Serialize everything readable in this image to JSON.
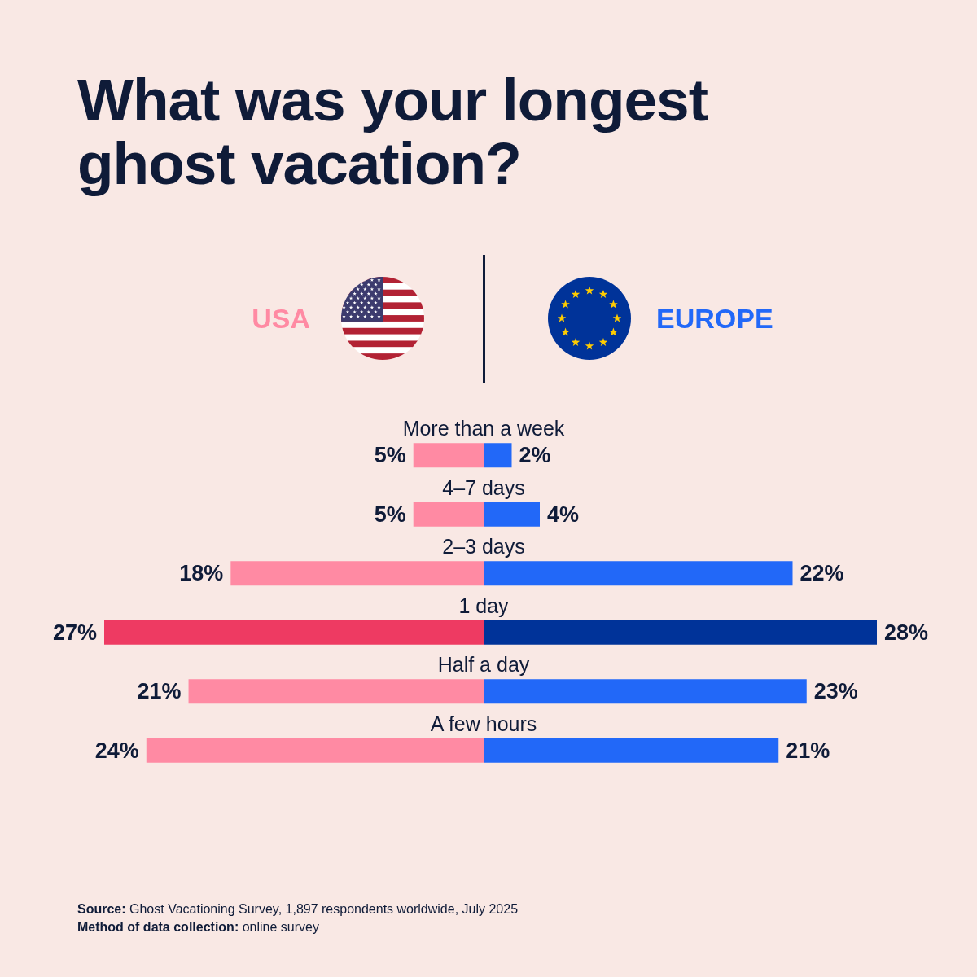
{
  "chart_data": [
    {
      "type": "bar",
      "orientation": "horizontal",
      "title": "What was your longest ghost vacation?",
      "categories": [
        "More than a week",
        "4–7 days",
        "2–3 days",
        "1 day",
        "Half a day",
        "A few hours"
      ],
      "series": [
        {
          "name": "USA",
          "values": [
            5,
            5,
            18,
            27,
            21,
            24
          ],
          "colors": [
            "#ff8aa3",
            "#ff8aa3",
            "#ff8aa3",
            "#ee3a62",
            "#ff8aa3",
            "#ff8aa3"
          ],
          "value_labels": [
            "5%",
            "5%",
            "18%",
            "27%",
            "21%",
            "24%"
          ]
        }
      ],
      "xlim": [
        27,
        0
      ],
      "legend": "top",
      "tick_labels": "y",
      "annotations": [
        "Source: Ghost Vacationing Survey, 1,897 respondents worldwide, July 2025",
        "Method of data collection: online survey"
      ]
    },
    {
      "type": "bar",
      "orientation": "horizontal",
      "categories": [
        null,
        null,
        null,
        null,
        null,
        null
      ],
      "series": [
        {
          "name": "EUROPE",
          "values": [
            2,
            4,
            22,
            28,
            23,
            21
          ],
          "colors": [
            "#2268f8",
            "#2268f8",
            "#2268f8",
            "#003399",
            "#2268f8",
            "#2268f8"
          ],
          "value_labels": [
            "2%",
            "4%",
            "22%",
            "28%",
            "23%",
            "21%"
          ]
        }
      ],
      "xlim": [
        0,
        28
      ],
      "legend": "top",
      "tick_labels": false
    }
  ]
}
